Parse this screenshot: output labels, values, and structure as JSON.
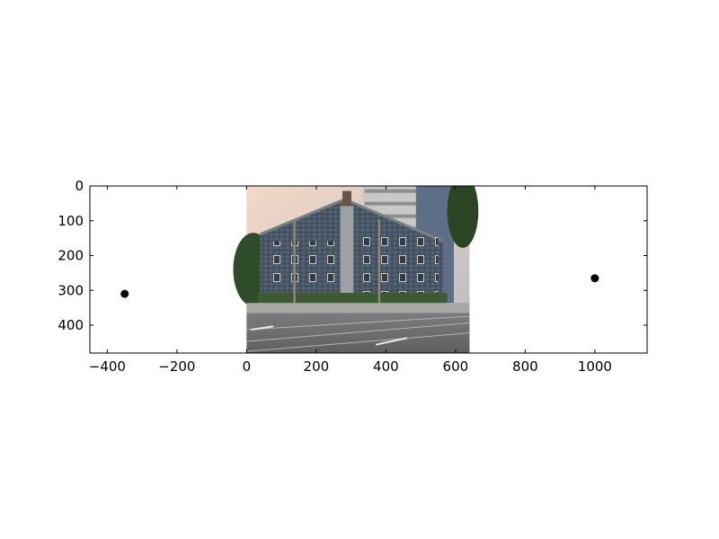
{
  "chart_data": {
    "type": "scatter",
    "title": "",
    "xlabel": "",
    "ylabel": "",
    "xlim": [
      -450,
      1150
    ],
    "ylim": [
      480,
      0
    ],
    "y_inverted": true,
    "grid": false,
    "x_ticks": [
      -400,
      -200,
      0,
      200,
      400,
      600,
      800,
      1000
    ],
    "x_tick_labels": [
      "−400",
      "−200",
      "0",
      "200",
      "400",
      "600",
      "800",
      "1000"
    ],
    "y_ticks": [
      0,
      100,
      200,
      300,
      400
    ],
    "y_tick_labels": [
      "0",
      "100",
      "200",
      "300",
      "400"
    ],
    "image_extent": {
      "x": [
        0,
        640
      ],
      "y": [
        0,
        480
      ]
    },
    "image_description_icon": "photo-building-street",
    "points": [
      {
        "x": -350,
        "y": 310
      },
      {
        "x": 1000,
        "y": 265
      }
    ],
    "point_color": "#000000"
  }
}
